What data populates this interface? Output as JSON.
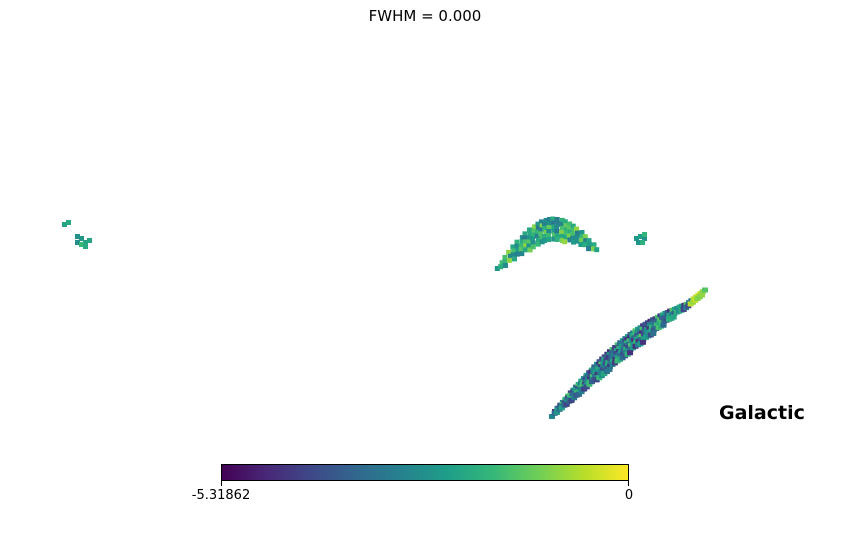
{
  "chart_data": {
    "type": "heatmap",
    "projection": "mollweide",
    "title": "FWHM = 0.000",
    "coord_label": "Galactic",
    "colormap": "viridis",
    "colorbar": {
      "min": -5.31862,
      "max": 0,
      "min_label": "-5.31862",
      "max_label": "0"
    },
    "range": [
      -5.31862,
      0
    ],
    "regions": [
      {
        "name": "small-west-patch",
        "typical_value": -2.2
      },
      {
        "name": "north-arc",
        "typical_value": -2.0
      },
      {
        "name": "north-east-spot",
        "typical_value": -2.2
      },
      {
        "name": "south-east-crescent",
        "typical_value": -3.0,
        "max_value": -0.3
      }
    ],
    "background": "unobserved (white)"
  },
  "colors": {
    "viridis": [
      "#440154",
      "#482878",
      "#3e4989",
      "#31688e",
      "#26828e",
      "#1f9e89",
      "#35b779",
      "#6ece58",
      "#b5de2b",
      "#fde725"
    ]
  }
}
